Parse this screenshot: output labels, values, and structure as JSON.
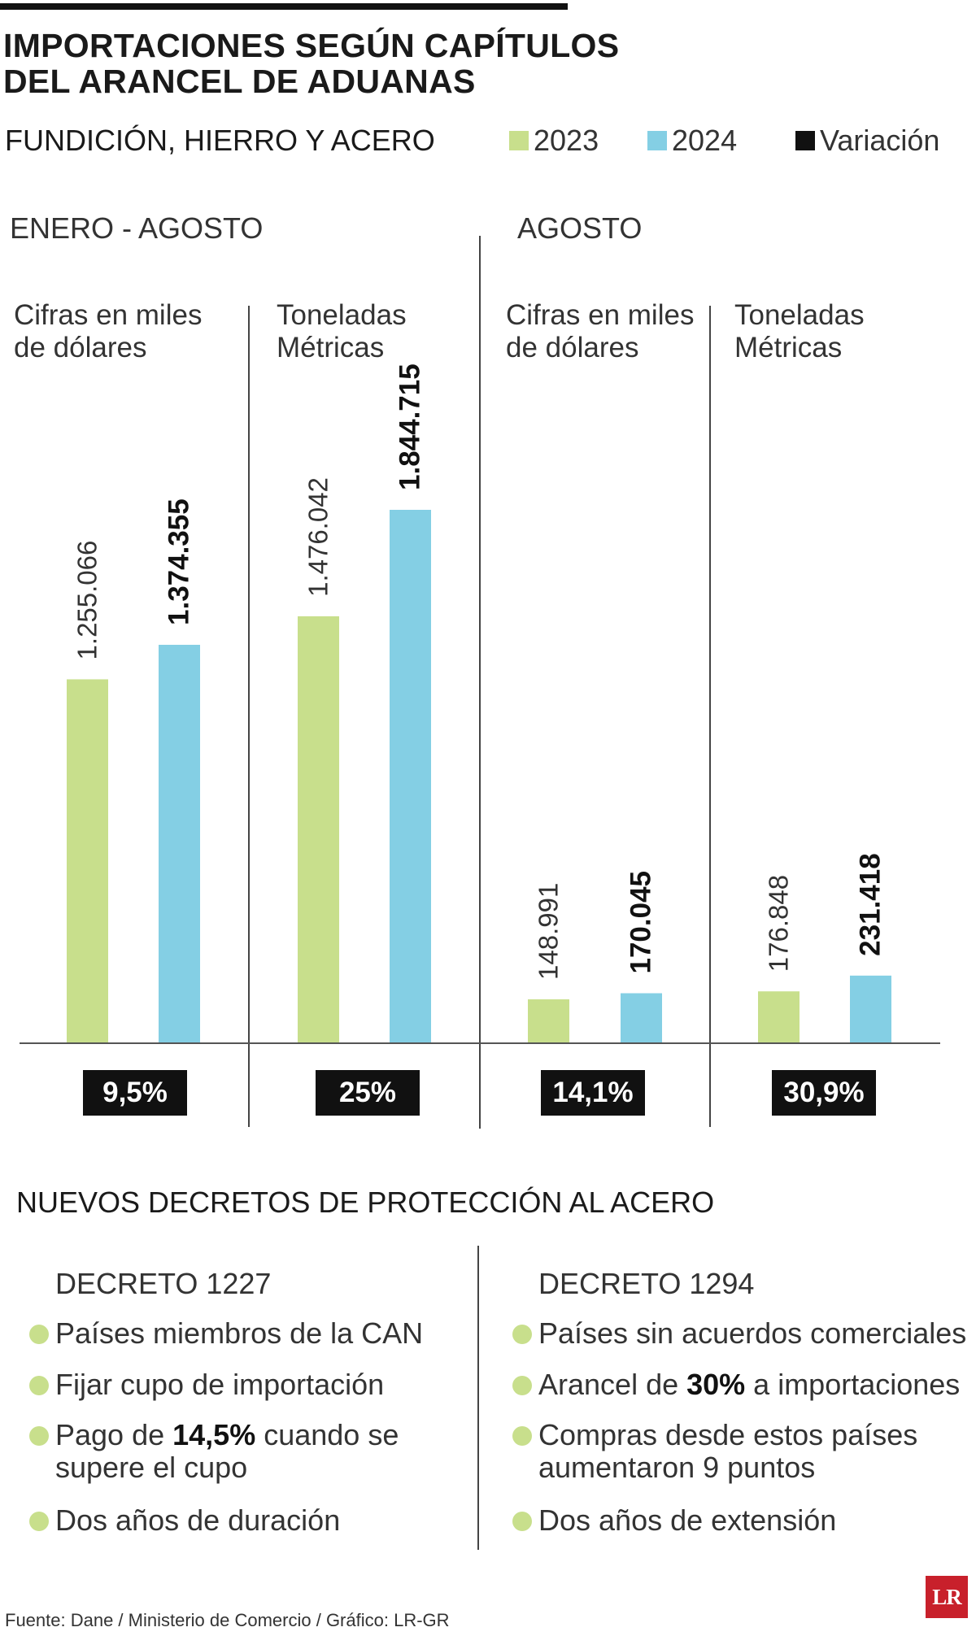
{
  "title_line1": "IMPORTACIONES SEGÚN CAPÍTULOS",
  "title_line2": "DEL ARANCEL DE ADUANAS",
  "subtitle": "FUNDICIÓN, HIERRO Y ACERO",
  "legend": [
    {
      "label": "2023",
      "color": "#c8df8c"
    },
    {
      "label": "2024",
      "color": "#84cfe4"
    },
    {
      "label": "Variación",
      "color": "#111111"
    }
  ],
  "sections": {
    "left": "ENERO - AGOSTO",
    "right": "AGOSTO"
  },
  "units": {
    "usd_line1": "Cifras en miles",
    "usd_line2": "de dólares",
    "tons_line1": "Toneladas",
    "tons_line2": "Métricas"
  },
  "chart_data": {
    "type": "bar",
    "series_names": [
      "2023",
      "2024"
    ],
    "groups": [
      {
        "period": "ENERO - AGOSTO",
        "unit": "Cifras en miles de dólares",
        "values": [
          1255066,
          1374355
        ],
        "labels": [
          "1.255.066",
          "1.374.355"
        ],
        "variation": "9,5%"
      },
      {
        "period": "ENERO - AGOSTO",
        "unit": "Toneladas Métricas",
        "values": [
          1476042,
          1844715
        ],
        "labels": [
          "1.476.042",
          "1.844.715"
        ],
        "variation": "25%"
      },
      {
        "period": "AGOSTO",
        "unit": "Cifras en miles de dólares",
        "values": [
          148991,
          170045
        ],
        "labels": [
          "148.991",
          "170.045"
        ],
        "variation": "14,1%"
      },
      {
        "period": "AGOSTO",
        "unit": "Toneladas Métricas",
        "values": [
          176848,
          231418
        ],
        "labels": [
          "176.848",
          "231.418"
        ],
        "variation": "30,9%"
      }
    ],
    "colors": [
      "#c8df8c",
      "#84cfe4"
    ]
  },
  "decrees_title": "NUEVOS DECRETOS DE PROTECCIÓN AL ACERO",
  "decree_1227": {
    "title": "DECRETO 1227",
    "b1": "Países miembros de la CAN",
    "b2": "Fijar cupo de importación",
    "b3_pre": "Pago de ",
    "b3_bold": "14,5%",
    "b3_post": " cuando se",
    "b3_line2": "supere el cupo",
    "b4": "Dos años de duración"
  },
  "decree_1294": {
    "title": "DECRETO 1294",
    "b1": "Países sin acuerdos comerciales",
    "b2_pre": "Arancel de ",
    "b2_bold": "30%",
    "b2_post": " a importaciones",
    "b3_line1": "Compras desde estos países",
    "b3_line2": "aumentaron 9 puntos",
    "b4": "Dos años de extensión"
  },
  "footer": "Fuente: Dane / Ministerio de Comercio / Gráfico: LR-GR",
  "logo": "LR"
}
